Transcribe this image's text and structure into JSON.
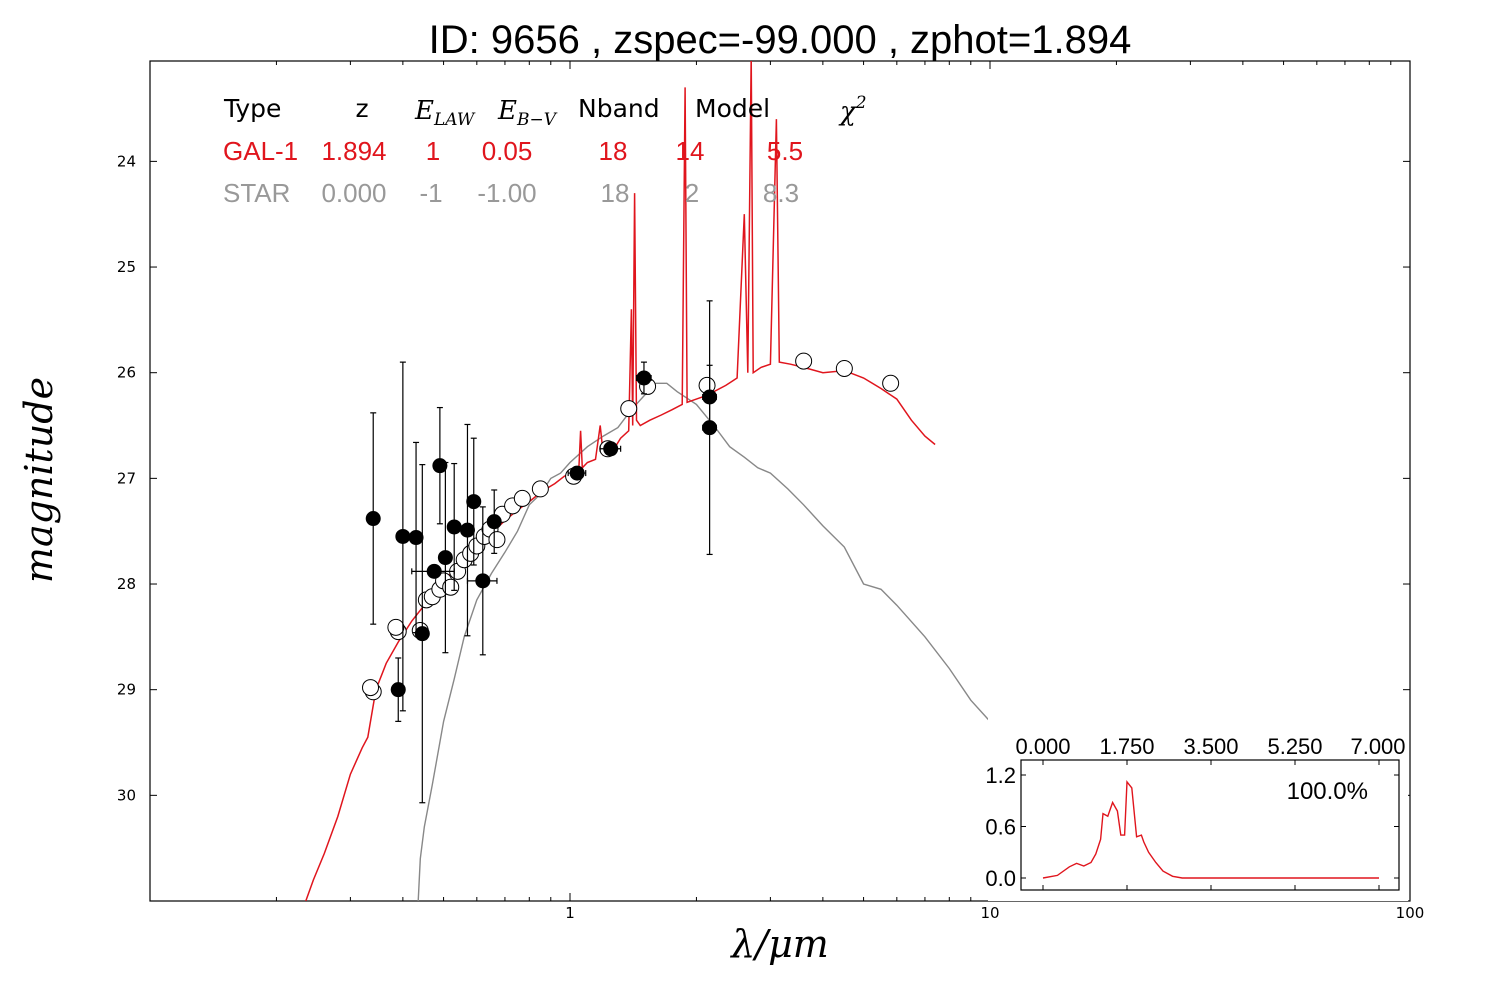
{
  "title": "ID:  9656  , zspec=-99.000 , zphot=1.894",
  "colors": {
    "galaxy": "#e0151d",
    "star": "#888888",
    "star_dark": "#555555",
    "axis": "#000000"
  },
  "table": {
    "headers": {
      "type": "Type",
      "z": "z",
      "e_law": "E",
      "e_law_sub": "LAW",
      "e_bv": "E",
      "e_bv_sub": "B−V",
      "nband": "Nband",
      "model": "Model",
      "chi2": "χ",
      "chi2_sup": "2"
    },
    "rows": [
      {
        "type": "GAL-1",
        "z": "1.894",
        "e_law": "1",
        "e_bv": "0.05",
        "nband": "18",
        "model": "14",
        "chi2": "5.5",
        "color": "#e0151d"
      },
      {
        "type": "STAR",
        "z": "0.000",
        "e_law": "-1",
        "e_bv": "-1.00",
        "nband": "18",
        "model": "2",
        "chi2": "8.3",
        "color": "#999999"
      }
    ]
  },
  "chart_data": [
    {
      "type": "scatter",
      "xlabel": "λ/μm",
      "ylabel": "magnitude",
      "xscale": "log",
      "xlim": [
        0.1,
        100
      ],
      "ylim": [
        31.0,
        23.05
      ],
      "y_inverted": true,
      "x_ticks": [
        "1",
        "10",
        "100"
      ],
      "x_tick_values": [
        1,
        10,
        100
      ],
      "y_ticks": [
        "24",
        "25",
        "26",
        "27",
        "28",
        "29",
        "30"
      ],
      "y_tick_values": [
        24,
        25,
        26,
        27,
        28,
        29,
        30
      ],
      "observed": [
        {
          "x": 0.34,
          "y": 27.38,
          "yerr": 1.0,
          "xerr": 0.008
        },
        {
          "x": 0.39,
          "y": 29.0,
          "yerr": 0.3,
          "xerr": 0.01
        },
        {
          "x": 0.4,
          "y": 27.55,
          "yerr": 1.65,
          "xerr": 0.008
        },
        {
          "x": 0.43,
          "y": 27.56,
          "yerr": 0.9,
          "xerr": 0.008
        },
        {
          "x": 0.445,
          "y": 28.47,
          "yerr": 1.6,
          "xerr": 0.008
        },
        {
          "x": 0.475,
          "y": 27.88,
          "yerr": 0.05,
          "xerr": 0.055
        },
        {
          "x": 0.49,
          "y": 26.88,
          "yerr": 0.55,
          "xerr": 0.008
        },
        {
          "x": 0.505,
          "y": 27.75,
          "yerr": 0.9,
          "xerr": 0.01
        },
        {
          "x": 0.53,
          "y": 27.46,
          "yerr": 0.6,
          "xerr": 0.01
        },
        {
          "x": 0.57,
          "y": 27.49,
          "yerr": 1.0,
          "xerr": 0.012
        },
        {
          "x": 0.59,
          "y": 27.22,
          "yerr": 0.6,
          "xerr": 0.012
        },
        {
          "x": 0.62,
          "y": 27.97,
          "yerr": 0.7,
          "xerr": 0.05
        },
        {
          "x": 0.66,
          "y": 27.41,
          "yerr": 0.3,
          "xerr": 0.015
        },
        {
          "x": 1.04,
          "y": 26.95,
          "yerr": 0.05,
          "xerr": 0.05
        },
        {
          "x": 1.25,
          "y": 26.72,
          "yerr": 0.05,
          "xerr": 0.07
        },
        {
          "x": 1.5,
          "y": 26.05,
          "yerr": 0.15,
          "xerr": 0.06
        },
        {
          "x": 2.15,
          "y": 26.23,
          "yerr": 0.3,
          "xerr": 0.08
        },
        {
          "x": 2.15,
          "y": 26.52,
          "yerr": 1.2,
          "xerr": 0.08
        }
      ],
      "model_points": [
        {
          "x": 0.34,
          "y": 29.02
        },
        {
          "x": 0.335,
          "y": 28.98
        },
        {
          "x": 0.39,
          "y": 28.45
        },
        {
          "x": 0.385,
          "y": 28.41
        },
        {
          "x": 0.44,
          "y": 28.44
        },
        {
          "x": 0.455,
          "y": 28.15
        },
        {
          "x": 0.47,
          "y": 28.12
        },
        {
          "x": 0.49,
          "y": 28.05
        },
        {
          "x": 0.5,
          "y": 27.97
        },
        {
          "x": 0.52,
          "y": 28.03
        },
        {
          "x": 0.54,
          "y": 27.88
        },
        {
          "x": 0.56,
          "y": 27.77
        },
        {
          "x": 0.58,
          "y": 27.71
        },
        {
          "x": 0.6,
          "y": 27.64
        },
        {
          "x": 0.625,
          "y": 27.55
        },
        {
          "x": 0.645,
          "y": 27.48
        },
        {
          "x": 0.67,
          "y": 27.58
        },
        {
          "x": 0.69,
          "y": 27.34
        },
        {
          "x": 0.73,
          "y": 27.26
        },
        {
          "x": 0.77,
          "y": 27.19
        },
        {
          "x": 0.85,
          "y": 27.1
        },
        {
          "x": 1.02,
          "y": 26.98
        },
        {
          "x": 1.23,
          "y": 26.72
        },
        {
          "x": 1.38,
          "y": 26.34
        },
        {
          "x": 1.53,
          "y": 26.13
        },
        {
          "x": 2.12,
          "y": 26.12
        },
        {
          "x": 3.6,
          "y": 25.89
        },
        {
          "x": 4.5,
          "y": 25.96
        },
        {
          "x": 5.8,
          "y": 26.1
        }
      ],
      "galaxy_sed": [
        [
          0.235,
          31.0
        ],
        [
          0.245,
          30.8
        ],
        [
          0.26,
          30.55
        ],
        [
          0.28,
          30.2
        ],
        [
          0.3,
          29.8
        ],
        [
          0.32,
          29.55
        ],
        [
          0.33,
          29.45
        ],
        [
          0.345,
          29.0
        ],
        [
          0.365,
          28.75
        ],
        [
          0.39,
          28.55
        ],
        [
          0.42,
          28.35
        ],
        [
          0.45,
          28.2
        ],
        [
          0.48,
          28.05
        ],
        [
          0.52,
          27.9
        ],
        [
          0.56,
          27.78
        ],
        [
          0.6,
          27.65
        ],
        [
          0.65,
          27.52
        ],
        [
          0.7,
          27.4
        ],
        [
          0.75,
          27.3
        ],
        [
          0.8,
          27.22
        ],
        [
          0.86,
          27.12
        ],
        [
          0.92,
          27.05
        ],
        [
          0.97,
          26.98
        ],
        [
          1.02,
          26.95
        ],
        [
          1.05,
          26.9
        ],
        [
          1.06,
          26.55
        ],
        [
          1.07,
          26.9
        ],
        [
          1.1,
          26.85
        ],
        [
          1.15,
          26.82
        ],
        [
          1.18,
          26.5
        ],
        [
          1.2,
          26.78
        ],
        [
          1.26,
          26.75
        ],
        [
          1.32,
          26.62
        ],
        [
          1.38,
          26.55
        ],
        [
          1.4,
          25.4
        ],
        [
          1.41,
          26.5
        ],
        [
          1.425,
          24.3
        ],
        [
          1.44,
          26.45
        ],
        [
          1.47,
          26.5
        ],
        [
          1.55,
          26.45
        ],
        [
          1.65,
          26.4
        ],
        [
          1.75,
          26.35
        ],
        [
          1.85,
          26.3
        ],
        [
          1.88,
          23.3
        ],
        [
          1.9,
          26.28
        ],
        [
          2.0,
          26.25
        ],
        [
          2.1,
          26.22
        ],
        [
          2.2,
          26.18
        ],
        [
          2.35,
          26.12
        ],
        [
          2.5,
          26.05
        ],
        [
          2.6,
          24.5
        ],
        [
          2.65,
          26.0
        ],
        [
          2.7,
          23.0
        ],
        [
          2.73,
          26.0
        ],
        [
          2.85,
          25.95
        ],
        [
          3.0,
          25.92
        ],
        [
          3.1,
          23.6
        ],
        [
          3.15,
          25.9
        ],
        [
          3.35,
          25.92
        ],
        [
          3.6,
          25.95
        ],
        [
          4.0,
          26.0
        ],
        [
          4.5,
          25.98
        ],
        [
          5.0,
          26.05
        ],
        [
          5.5,
          26.15
        ],
        [
          6.0,
          26.25
        ],
        [
          6.5,
          26.45
        ],
        [
          7.0,
          26.6
        ],
        [
          7.4,
          26.68
        ]
      ],
      "star_sed": [
        [
          0.435,
          31.0
        ],
        [
          0.44,
          30.6
        ],
        [
          0.45,
          30.3
        ],
        [
          0.47,
          29.9
        ],
        [
          0.5,
          29.3
        ],
        [
          0.53,
          28.9
        ],
        [
          0.56,
          28.5
        ],
        [
          0.6,
          28.15
        ],
        [
          0.65,
          27.9
        ],
        [
          0.7,
          27.7
        ],
        [
          0.75,
          27.5
        ],
        [
          0.8,
          27.25
        ],
        [
          0.85,
          27.15
        ],
        [
          0.9,
          27.0
        ],
        [
          0.95,
          26.95
        ],
        [
          1.0,
          26.85
        ],
        [
          1.1,
          26.7
        ],
        [
          1.2,
          26.6
        ],
        [
          1.3,
          26.52
        ],
        [
          1.4,
          26.35
        ],
        [
          1.5,
          26.22
        ],
        [
          1.6,
          26.1
        ],
        [
          1.7,
          26.1
        ],
        [
          1.8,
          26.18
        ],
        [
          2.0,
          26.3
        ],
        [
          2.2,
          26.5
        ],
        [
          2.4,
          26.7
        ],
        [
          2.6,
          26.8
        ],
        [
          2.8,
          26.9
        ],
        [
          3.0,
          26.95
        ],
        [
          3.3,
          27.1
        ],
        [
          3.6,
          27.25
        ],
        [
          4.0,
          27.45
        ],
        [
          4.5,
          27.65
        ],
        [
          5.0,
          28.0
        ],
        [
          5.5,
          28.05
        ],
        [
          6.0,
          28.2
        ],
        [
          7.0,
          28.5
        ],
        [
          8.0,
          28.8
        ],
        [
          9.0,
          29.1
        ],
        [
          10.0,
          29.3
        ]
      ]
    },
    {
      "type": "line",
      "name": "inset",
      "xlim": [
        0,
        7
      ],
      "ylim": [
        -0.05,
        1.3
      ],
      "x_ticks": [
        "0.000",
        "1.750",
        "3.500",
        "5.250",
        "7.000"
      ],
      "x_tick_values": [
        0,
        1.75,
        3.5,
        5.25,
        7.0
      ],
      "y_ticks": [
        "0.0",
        "0.6",
        "1.2"
      ],
      "y_tick_values": [
        0.0,
        0.6,
        1.2
      ],
      "annotation": "100.0%",
      "x": [
        0.0,
        0.3,
        0.55,
        0.7,
        0.85,
        1.0,
        1.1,
        1.2,
        1.25,
        1.35,
        1.45,
        1.55,
        1.62,
        1.7,
        1.75,
        1.85,
        1.95,
        2.05,
        2.1,
        2.2,
        2.35,
        2.5,
        2.7,
        2.9,
        3.2,
        3.6,
        4.5,
        5.5,
        7.0
      ],
      "y": [
        0.0,
        0.03,
        0.13,
        0.17,
        0.14,
        0.18,
        0.28,
        0.45,
        0.75,
        0.72,
        0.88,
        0.78,
        0.5,
        0.5,
        1.12,
        1.05,
        0.48,
        0.5,
        0.42,
        0.3,
        0.18,
        0.08,
        0.02,
        0.0,
        0.0,
        0.0,
        0.0,
        0.0,
        0.0
      ]
    }
  ]
}
